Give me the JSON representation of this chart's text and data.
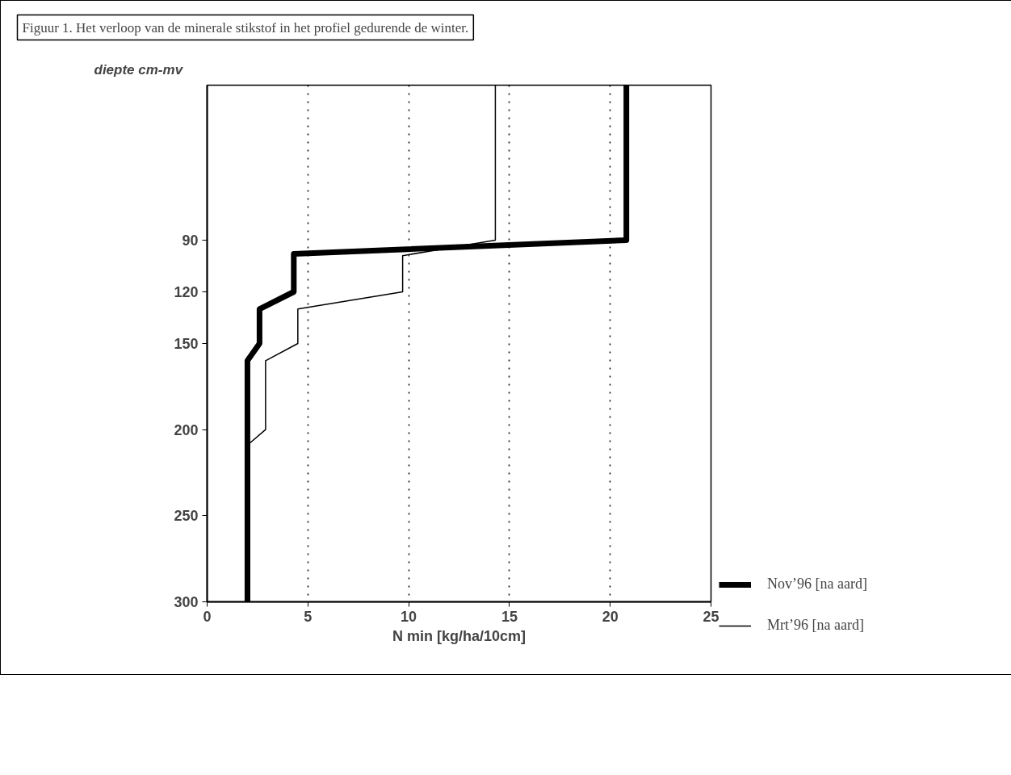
{
  "chart_data": {
    "type": "line",
    "title": "Figuur 1. Het verloop van de minerale stikstof in het profiel gedurende de winter.",
    "ylabel": "diepte cm-mv",
    "xlabel": "N min [kg/ha/10cm]",
    "xlim": [
      0,
      25
    ],
    "xticks": [
      0,
      5,
      10,
      15,
      20,
      25
    ],
    "ylim": [
      300,
      0
    ],
    "yticks": [
      90,
      120,
      150,
      200,
      250,
      300
    ],
    "grid": "x",
    "legend": "bottom right",
    "marker": "none",
    "line_style": "solid",
    "series": [
      {
        "name": "Nov’96 [na aard]",
        "color": "#000000",
        "x": [
          20.8,
          20.8,
          4.3,
          4.3,
          2.6,
          2.6,
          2.0,
          2.0
        ],
        "values": [
          0,
          90,
          98,
          120,
          130,
          150,
          160,
          300
        ]
      },
      {
        "name": "Mrt’96 [na aard]",
        "color": "#000000",
        "x": [
          14.3,
          14.3,
          9.7,
          9.7,
          4.5,
          4.5,
          2.9,
          2.9,
          2.1,
          2.1
        ],
        "values": [
          0,
          90,
          99,
          120,
          130,
          150,
          160,
          200,
          208,
          300
        ]
      }
    ]
  }
}
